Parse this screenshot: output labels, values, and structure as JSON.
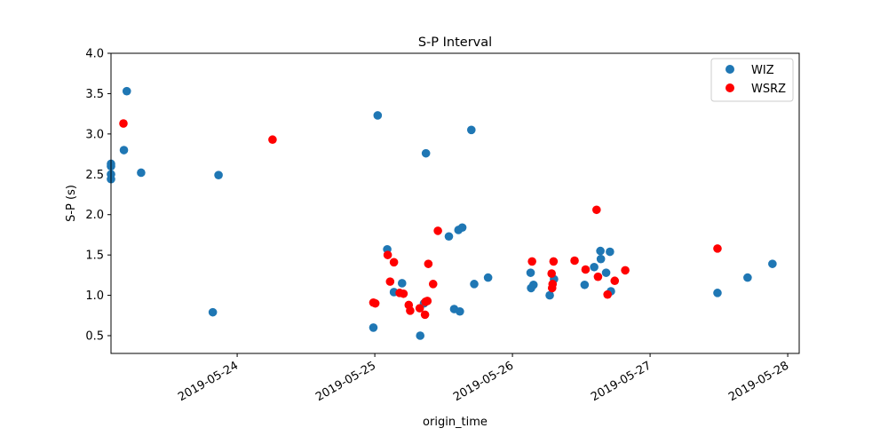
{
  "chart_data": {
    "type": "scatter",
    "title": "S-P Interval",
    "xlabel": "origin_time",
    "ylabel": "S-P (s)",
    "xlim": [
      "2019-05-23 02:00",
      "2019-05-28 02:00"
    ],
    "ylim": [
      0.28,
      4.0
    ],
    "x_ticks": [
      "2019-05-24",
      "2019-05-25",
      "2019-05-26",
      "2019-05-27",
      "2019-05-28"
    ],
    "y_ticks": [
      "0.5",
      "1.0",
      "1.5",
      "2.0",
      "2.5",
      "3.0",
      "3.5",
      "4.0"
    ],
    "grid": false,
    "legend_position": "top-right",
    "series": [
      {
        "name": "WIZ",
        "color": "#1f77b4",
        "points": [
          [
            "2019-05-23 02:00",
            2.44
          ],
          [
            "2019-05-23 02:00",
            2.5
          ],
          [
            "2019-05-23 02:00",
            2.6
          ],
          [
            "2019-05-23 02:00",
            2.63
          ],
          [
            "2019-05-23 04:15",
            2.8
          ],
          [
            "2019-05-23 04:45",
            3.53
          ],
          [
            "2019-05-23 07:15",
            2.52
          ],
          [
            "2019-05-23 19:45",
            0.79
          ],
          [
            "2019-05-23 20:45",
            2.49
          ],
          [
            "2019-05-24 23:45",
            0.6
          ],
          [
            "2019-05-25 00:30",
            3.23
          ],
          [
            "2019-05-25 02:10",
            1.57
          ],
          [
            "2019-05-25 03:20",
            1.04
          ],
          [
            "2019-05-25 04:45",
            1.15
          ],
          [
            "2019-05-25 07:55",
            0.5
          ],
          [
            "2019-05-25 08:35",
            0.9
          ],
          [
            "2019-05-25 08:55",
            2.76
          ],
          [
            "2019-05-25 12:55",
            1.73
          ],
          [
            "2019-05-25 13:50",
            0.83
          ],
          [
            "2019-05-25 14:35",
            1.81
          ],
          [
            "2019-05-25 14:50",
            0.8
          ],
          [
            "2019-05-25 15:15",
            1.84
          ],
          [
            "2019-05-25 16:50",
            3.05
          ],
          [
            "2019-05-25 17:20",
            1.14
          ],
          [
            "2019-05-25 19:45",
            1.22
          ],
          [
            "2019-05-26 03:10",
            1.28
          ],
          [
            "2019-05-26 03:15",
            1.09
          ],
          [
            "2019-05-26 03:40",
            1.13
          ],
          [
            "2019-05-26 06:30",
            1.0
          ],
          [
            "2019-05-26 07:15",
            1.2
          ],
          [
            "2019-05-26 12:35",
            1.13
          ],
          [
            "2019-05-26 14:15",
            1.35
          ],
          [
            "2019-05-26 15:20",
            1.55
          ],
          [
            "2019-05-26 15:25",
            1.45
          ],
          [
            "2019-05-26 16:20",
            1.28
          ],
          [
            "2019-05-26 17:00",
            1.54
          ],
          [
            "2019-05-26 17:10",
            1.05
          ],
          [
            "2019-05-27 11:45",
            1.03
          ],
          [
            "2019-05-27 17:00",
            1.22
          ],
          [
            "2019-05-27 21:20",
            1.39
          ]
        ]
      },
      {
        "name": "WSRZ",
        "color": "#ff0000",
        "points": [
          [
            "2019-05-23 04:10",
            3.13
          ],
          [
            "2019-05-24 06:10",
            2.93
          ],
          [
            "2019-05-24 23:45",
            0.91
          ],
          [
            "2019-05-25 00:05",
            0.9
          ],
          [
            "2019-05-25 02:15",
            1.5
          ],
          [
            "2019-05-25 02:40",
            1.17
          ],
          [
            "2019-05-25 03:20",
            1.41
          ],
          [
            "2019-05-25 04:20",
            1.03
          ],
          [
            "2019-05-25 05:00",
            1.02
          ],
          [
            "2019-05-25 05:55",
            0.88
          ],
          [
            "2019-05-25 06:10",
            0.81
          ],
          [
            "2019-05-25 07:50",
            0.84
          ],
          [
            "2019-05-25 08:45",
            0.76
          ],
          [
            "2019-05-25 08:50",
            0.92
          ],
          [
            "2019-05-25 09:10",
            0.93
          ],
          [
            "2019-05-25 09:20",
            1.39
          ],
          [
            "2019-05-25 10:10",
            1.14
          ],
          [
            "2019-05-25 11:00",
            1.8
          ],
          [
            "2019-05-26 03:25",
            1.42
          ],
          [
            "2019-05-26 06:50",
            1.27
          ],
          [
            "2019-05-26 06:55",
            1.09
          ],
          [
            "2019-05-26 07:00",
            1.14
          ],
          [
            "2019-05-26 07:10",
            1.42
          ],
          [
            "2019-05-26 10:50",
            1.43
          ],
          [
            "2019-05-26 12:45",
            1.32
          ],
          [
            "2019-05-26 14:40",
            2.06
          ],
          [
            "2019-05-26 14:55",
            1.23
          ],
          [
            "2019-05-26 16:35",
            1.01
          ],
          [
            "2019-05-26 17:50",
            1.18
          ],
          [
            "2019-05-26 19:40",
            1.31
          ],
          [
            "2019-05-27 11:45",
            1.58
          ]
        ]
      }
    ]
  }
}
